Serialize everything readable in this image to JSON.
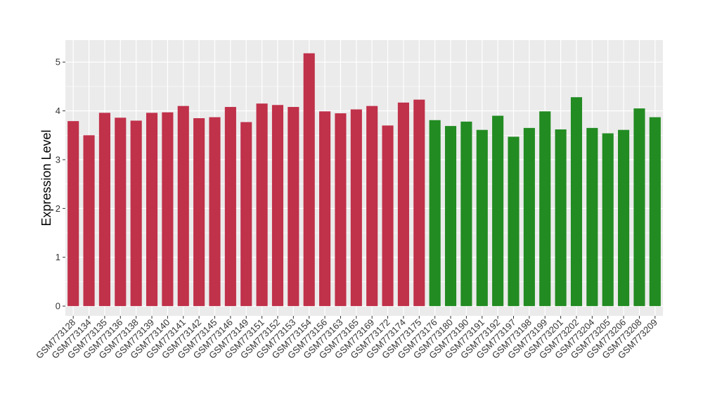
{
  "chart_data": {
    "type": "bar",
    "title": "",
    "xlabel": "",
    "ylabel": "Expression Level",
    "ylim": [
      -0.2,
      5.45
    ],
    "yticks": [
      0,
      1,
      2,
      3,
      4,
      5
    ],
    "grid": true,
    "categories": [
      "GSM773128",
      "GSM773134",
      "GSM773135",
      "GSM773136",
      "GSM773138",
      "GSM773139",
      "GSM773140",
      "GSM773141",
      "GSM773142",
      "GSM773145",
      "GSM773146",
      "GSM773149",
      "GSM773151",
      "GSM773152",
      "GSM773153",
      "GSM773154",
      "GSM773156",
      "GSM773163",
      "GSM773165",
      "GSM773169",
      "GSM773172",
      "GSM773174",
      "GSM773175",
      "GSM773176",
      "GSM773180",
      "GSM773190",
      "GSM773191",
      "GSM773192",
      "GSM773197",
      "GSM773198",
      "GSM773199",
      "GSM773201",
      "GSM773202",
      "GSM773204",
      "GSM773205",
      "GSM773206",
      "GSM773208",
      "GSM773209"
    ],
    "values": [
      3.79,
      3.5,
      3.96,
      3.86,
      3.8,
      3.96,
      3.97,
      4.1,
      3.85,
      3.87,
      4.08,
      3.77,
      4.15,
      4.12,
      4.08,
      5.18,
      3.99,
      3.95,
      4.03,
      4.1,
      3.7,
      4.17,
      4.23,
      3.81,
      3.69,
      3.78,
      3.61,
      3.9,
      3.47,
      3.65,
      3.99,
      3.62,
      4.28,
      3.65,
      3.54,
      3.61,
      4.05,
      3.87
    ],
    "bar_colors": [
      "#c0314a",
      "#c0314a",
      "#c0314a",
      "#c0314a",
      "#c0314a",
      "#c0314a",
      "#c0314a",
      "#c0314a",
      "#c0314a",
      "#c0314a",
      "#c0314a",
      "#c0314a",
      "#c0314a",
      "#c0314a",
      "#c0314a",
      "#c0314a",
      "#c0314a",
      "#c0314a",
      "#c0314a",
      "#c0314a",
      "#c0314a",
      "#c0314a",
      "#c0314a",
      "#228b22",
      "#228b22",
      "#228b22",
      "#228b22",
      "#228b22",
      "#228b22",
      "#228b22",
      "#228b22",
      "#228b22",
      "#228b22",
      "#228b22",
      "#228b22",
      "#228b22",
      "#228b22",
      "#228b22"
    ],
    "panel_background": "#ebebeb",
    "grid_color": "#ffffff"
  }
}
